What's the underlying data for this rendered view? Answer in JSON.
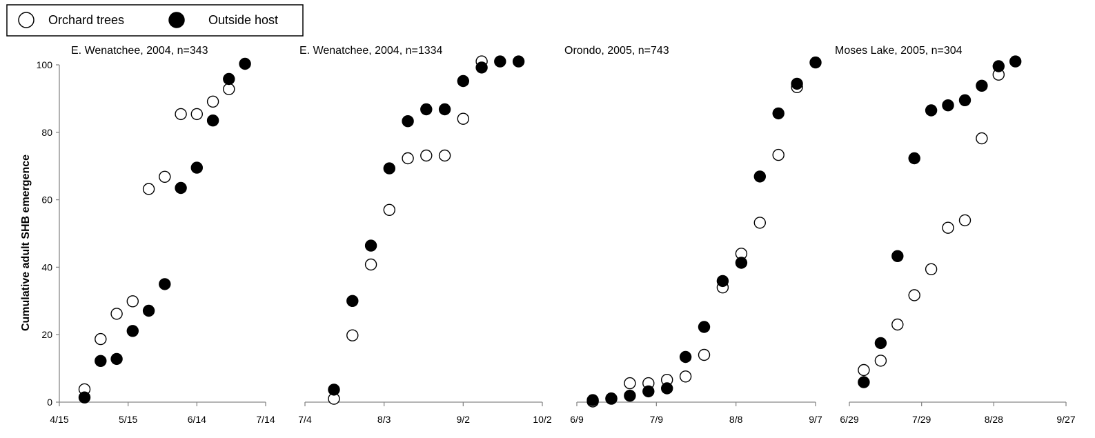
{
  "chart_data": {
    "type": "scatter",
    "ylabel": "Cumulative adult SHB emergence",
    "legend": {
      "placement": "top-left",
      "entries": [
        {
          "label": "Orchard trees",
          "marker": "open-circle"
        },
        {
          "label": "Outside host",
          "marker": "filled-circle"
        }
      ]
    },
    "colors": {
      "marker_stroke": "#000000",
      "filled": "#000000",
      "open": "#ffffff",
      "axis": "#888888"
    },
    "grid": false,
    "yticks": [
      "0",
      "20",
      "40",
      "60",
      "80",
      "100"
    ],
    "ylim": [
      0,
      100
    ],
    "panels": [
      {
        "title": "E. Wenatchee, 2004, n=343",
        "xticks": [
          "4/15",
          "5/15",
          "6/14",
          "7/14"
        ],
        "xlim": [
          "4/15",
          "7/14"
        ],
        "series": [
          {
            "name": "Orchard trees",
            "points": [
              [
                "4/26",
                3.8
              ],
              [
                "5/3",
                18.7
              ],
              [
                "5/10",
                26.2
              ],
              [
                "5/17",
                29.9
              ],
              [
                "5/24",
                63.2
              ],
              [
                "5/31",
                66.8
              ],
              [
                "6/7",
                85.4
              ],
              [
                "6/14",
                85.4
              ],
              [
                "6/21",
                89.1
              ],
              [
                "6/28",
                92.8
              ]
            ]
          },
          {
            "name": "Outside host",
            "points": [
              [
                "4/26",
                1.4
              ],
              [
                "5/3",
                12.2
              ],
              [
                "5/10",
                12.8
              ],
              [
                "5/17",
                21.1
              ],
              [
                "5/24",
                27.1
              ],
              [
                "5/31",
                35.0
              ],
              [
                "6/7",
                63.5
              ],
              [
                "6/14",
                69.5
              ],
              [
                "6/21",
                83.5
              ],
              [
                "6/28",
                95.8
              ],
              [
                "7/5",
                100.3
              ]
            ]
          }
        ]
      },
      {
        "title": "E. Wenatchee, 2004, n=1334",
        "xticks": [
          "7/4",
          "8/3",
          "9/2",
          "10/2"
        ],
        "xlim": [
          "7/4",
          "10/2"
        ],
        "series": [
          {
            "name": "Orchard trees",
            "points": [
              [
                "7/15",
                1.0
              ],
              [
                "7/22",
                19.8
              ],
              [
                "7/29",
                40.8
              ],
              [
                "8/5",
                57.0
              ],
              [
                "8/12",
                72.3
              ],
              [
                "8/19",
                73.1
              ],
              [
                "8/26",
                73.1
              ],
              [
                "9/2",
                84.0
              ],
              [
                "9/9",
                101.0
              ]
            ]
          },
          {
            "name": "Outside host",
            "points": [
              [
                "7/15",
                3.7
              ],
              [
                "7/22",
                30.0
              ],
              [
                "7/29",
                46.4
              ],
              [
                "8/5",
                69.3
              ],
              [
                "8/12",
                83.3
              ],
              [
                "8/19",
                86.8
              ],
              [
                "8/26",
                86.8
              ],
              [
                "9/2",
                95.2
              ],
              [
                "9/9",
                99.2
              ],
              [
                "9/16",
                101.0
              ],
              [
                "9/23",
                101.0
              ]
            ]
          }
        ]
      },
      {
        "title": "Orondo, 2005, n=743",
        "xticks": [
          "6/9",
          "7/9",
          "8/8",
          "9/7"
        ],
        "xlim": [
          "6/9",
          "9/7"
        ],
        "series": [
          {
            "name": "Orchard trees",
            "points": [
              [
                "6/15",
                0.2
              ],
              [
                "6/22",
                1.0
              ],
              [
                "6/29",
                5.6
              ],
              [
                "7/6",
                5.6
              ],
              [
                "7/13",
                6.6
              ],
              [
                "7/20",
                7.6
              ],
              [
                "7/27",
                14.0
              ],
              [
                "8/3",
                34.0
              ],
              [
                "8/10",
                44.0
              ],
              [
                "8/17",
                53.2
              ],
              [
                "8/24",
                73.3
              ],
              [
                "8/31",
                93.4
              ]
            ]
          },
          {
            "name": "Outside host",
            "points": [
              [
                "6/15",
                0.6
              ],
              [
                "6/22",
                1.1
              ],
              [
                "6/29",
                1.9
              ],
              [
                "7/6",
                3.2
              ],
              [
                "7/13",
                4.1
              ],
              [
                "7/20",
                13.4
              ],
              [
                "7/27",
                22.3
              ],
              [
                "8/3",
                35.9
              ],
              [
                "8/10",
                41.3
              ],
              [
                "8/17",
                66.9
              ],
              [
                "8/24",
                85.6
              ],
              [
                "8/31",
                94.4
              ],
              [
                "9/7",
                100.7
              ]
            ]
          }
        ]
      },
      {
        "title": "Moses Lake, 2005, n=304",
        "xticks": [
          "6/29",
          "7/29",
          "8/28",
          "9/27"
        ],
        "xlim": [
          "6/29",
          "9/27"
        ],
        "series": [
          {
            "name": "Orchard trees",
            "points": [
              [
                "7/5",
                9.5
              ],
              [
                "7/12",
                12.3
              ],
              [
                "7/19",
                23.0
              ],
              [
                "7/26",
                31.7
              ],
              [
                "8/2",
                39.4
              ],
              [
                "8/9",
                51.7
              ],
              [
                "8/16",
                53.9
              ],
              [
                "8/23",
                78.2
              ],
              [
                "8/30",
                97.1
              ]
            ]
          },
          {
            "name": "Outside host",
            "points": [
              [
                "7/5",
                5.9
              ],
              [
                "7/12",
                17.5
              ],
              [
                "7/19",
                43.3
              ],
              [
                "7/26",
                72.3
              ],
              [
                "8/2",
                86.5
              ],
              [
                "8/9",
                88.0
              ],
              [
                "8/16",
                89.5
              ],
              [
                "8/23",
                93.8
              ],
              [
                "8/30",
                99.6
              ],
              [
                "9/6",
                101.0
              ]
            ]
          }
        ]
      }
    ]
  }
}
